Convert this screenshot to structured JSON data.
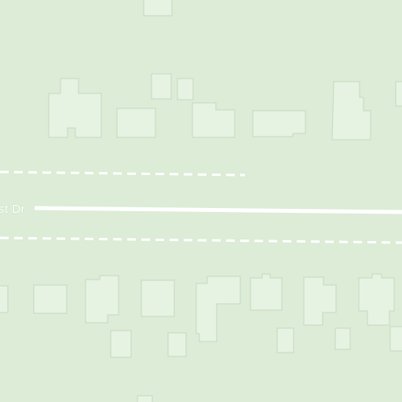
{
  "map": {
    "background_color": "#dcecd6",
    "building_fill": "#e6f2e2",
    "building_stroke": "#c6d8c0",
    "road_color": "#ffffff",
    "street_label": "st Dr"
  }
}
